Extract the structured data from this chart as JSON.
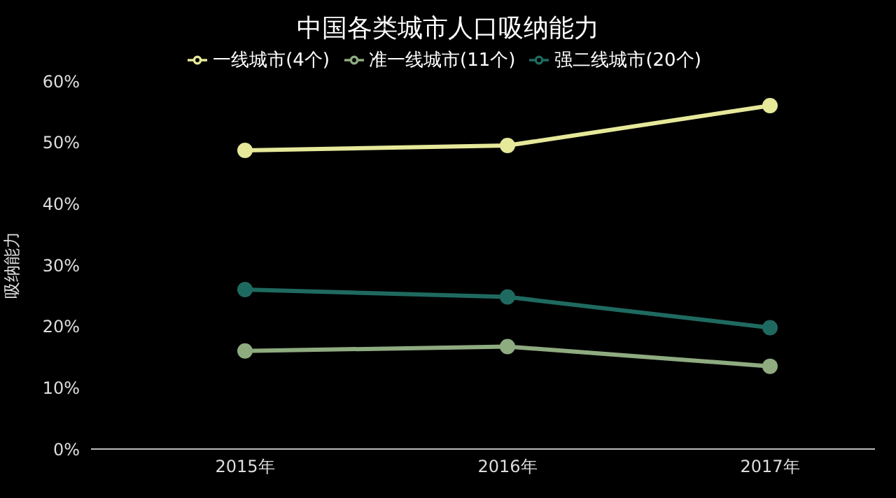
{
  "chart_data": {
    "type": "line",
    "title": "中国各类城市人口吸纳能力",
    "ylabel": "吸纳能力",
    "categories": [
      "2015年",
      "2016年",
      "2017年"
    ],
    "series": [
      {
        "name": "一线城市(4个)",
        "color": "#e6e89a",
        "values": [
          48.7,
          49.5,
          56
        ]
      },
      {
        "name": "准一线城市(11个)",
        "color": "#8fab80",
        "values": [
          16,
          16.7,
          13.5
        ]
      },
      {
        "name": "强二线城市(20个)",
        "color": "#1f6a60",
        "values": [
          26,
          24.8,
          19.8
        ]
      }
    ],
    "ylim": [
      0,
      60
    ],
    "yticks": [
      {
        "value": 0,
        "label": "0%"
      },
      {
        "value": 10,
        "label": "10%"
      },
      {
        "value": 20,
        "label": "20%"
      },
      {
        "value": 30,
        "label": "30%"
      },
      {
        "value": 40,
        "label": "40%"
      },
      {
        "value": 50,
        "label": "50%"
      },
      {
        "value": 60,
        "label": "60%"
      }
    ],
    "grid": false,
    "legend": "top",
    "marker": "circle",
    "line_style": "solid"
  }
}
